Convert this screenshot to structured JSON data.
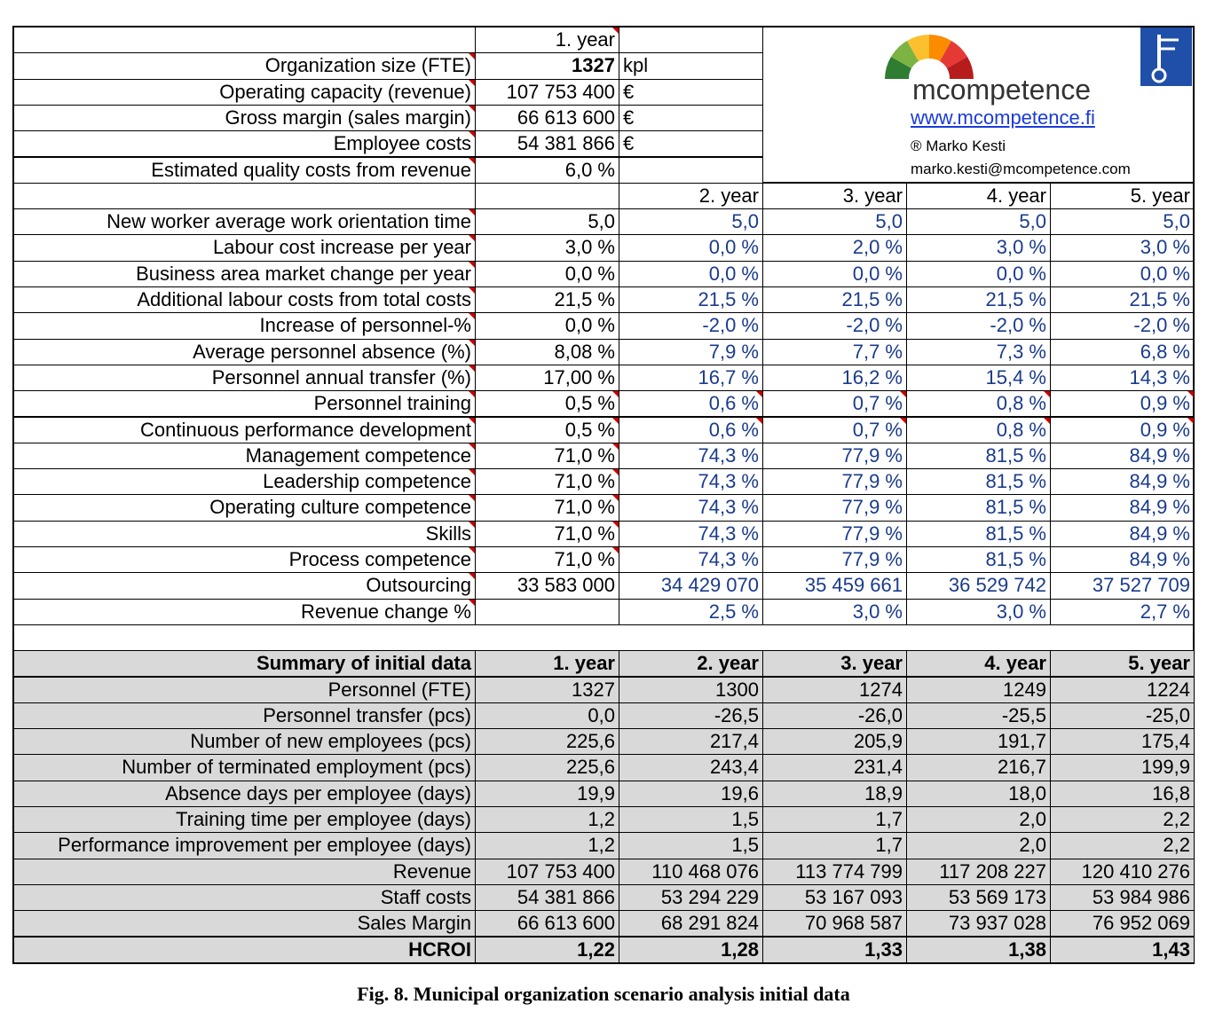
{
  "top": {
    "col_header": "1. year",
    "rows": [
      [
        "Organization size (FTE)",
        "1327",
        "kpl"
      ],
      [
        "Operating capacity (revenue)",
        "107 753 400",
        "€"
      ],
      [
        "Gross margin (sales margin)",
        "66 613 600",
        "€"
      ],
      [
        "Employee costs",
        "54 381 866",
        "€"
      ],
      [
        "Estimated quality costs from revenue",
        "6,0 %",
        null
      ]
    ]
  },
  "logo": {
    "brand": "mcompetence",
    "url": "www.mcompetence.fi",
    "author": "® Marko Kesti",
    "email": "marko.kesti@mcompetence.com"
  },
  "params": {
    "headers": [
      "2. year",
      "3. year",
      "4. year",
      "5. year"
    ],
    "rows": [
      [
        "New worker average work orientation time",
        "5,0",
        "5,0",
        "5,0",
        "5,0",
        "5,0"
      ],
      [
        "Labour cost increase per year",
        "3,0 %",
        "0,0 %",
        "2,0 %",
        "3,0 %",
        "3,0 %"
      ],
      [
        "Business area market change per year",
        "0,0 %",
        "0,0 %",
        "0,0 %",
        "0,0 %",
        "0,0 %"
      ],
      [
        "Additional labour costs from total costs",
        "21,5 %",
        "21,5 %",
        "21,5 %",
        "21,5 %",
        "21,5 %"
      ],
      [
        "Increase of personnel-%",
        "0,0 %",
        "-2,0 %",
        "-2,0 %",
        "-2,0 %",
        "-2,0 %"
      ],
      [
        "Average personnel absence (%)",
        "8,08 %",
        "7,9 %",
        "7,7 %",
        "7,3 %",
        "6,8 %"
      ],
      [
        "Personnel annual transfer (%)",
        "17,00 %",
        "16,7 %",
        "16,2 %",
        "15,4 %",
        "14,3 %"
      ],
      [
        "Personnel training",
        "0,5 %",
        "0,6 %",
        "0,7 %",
        "0,8 %",
        "0,9 %"
      ],
      [
        "Continuous performance development",
        "0,5 %",
        "0,6 %",
        "0,7 %",
        "0,8 %",
        "0,9 %"
      ],
      [
        "Management competence",
        "71,0 %",
        "74,3 %",
        "77,9 %",
        "81,5 %",
        "84,9 %"
      ],
      [
        "Leadership competence",
        "71,0 %",
        "74,3 %",
        "77,9 %",
        "81,5 %",
        "84,9 %"
      ],
      [
        "Operating culture competence",
        "71,0 %",
        "74,3 %",
        "77,9 %",
        "81,5 %",
        "84,9 %"
      ],
      [
        "Skills",
        "71,0 %",
        "74,3 %",
        "77,9 %",
        "81,5 %",
        "84,9 %"
      ],
      [
        "Process competence",
        "71,0 %",
        "74,3 %",
        "77,9 %",
        "81,5 %",
        "84,9 %"
      ],
      [
        "Outsourcing",
        "33 583 000",
        "34 429 070",
        "35 459 661",
        "36 529 742",
        "37 527 709"
      ],
      [
        "Revenue change %",
        null,
        "2,5 %",
        "3,0 %",
        "3,0 %",
        "2,7 %"
      ]
    ]
  },
  "summary": {
    "header": [
      "Summary of initial data",
      "1. year",
      "2. year",
      "3. year",
      "4. year",
      "5. year"
    ],
    "rows": [
      [
        "Personnel (FTE)",
        "1327",
        "1300",
        "1274",
        "1249",
        "1224"
      ],
      [
        "Personnel transfer (pcs)",
        "0,0",
        "-26,5",
        "-26,0",
        "-25,5",
        "-25,0"
      ],
      [
        "Number of new employees (pcs)",
        "225,6",
        "217,4",
        "205,9",
        "191,7",
        "175,4"
      ],
      [
        "Number of terminated employment (pcs)",
        "225,6",
        "243,4",
        "231,4",
        "216,7",
        "199,9"
      ],
      [
        "Absence days per employee (days)",
        "19,9",
        "19,6",
        "18,9",
        "18,0",
        "16,8"
      ],
      [
        "Training time per employee (days)",
        "1,2",
        "1,5",
        "1,7",
        "2,0",
        "2,2"
      ],
      [
        "Performance improvement per employee (days)",
        "1,2",
        "1,5",
        "1,7",
        "2,0",
        "2,2"
      ],
      [
        "Revenue",
        "107 753 400",
        "110 468 076",
        "113 774 799",
        "117 208 227",
        "120 410 276"
      ],
      [
        "Staff costs",
        "54 381 866",
        "53 294 229",
        "53 167 093",
        "53 569 173",
        "53 984 986"
      ],
      [
        "Sales Margin",
        "66 613 600",
        "68 291 824",
        "70 968 587",
        "73 937 028",
        "76 952 069"
      ],
      [
        "HCROI",
        "1,22",
        "1,28",
        "1,33",
        "1,38",
        "1,43"
      ]
    ]
  },
  "caption": "Fig. 8. Municipal organization scenario analysis initial data"
}
